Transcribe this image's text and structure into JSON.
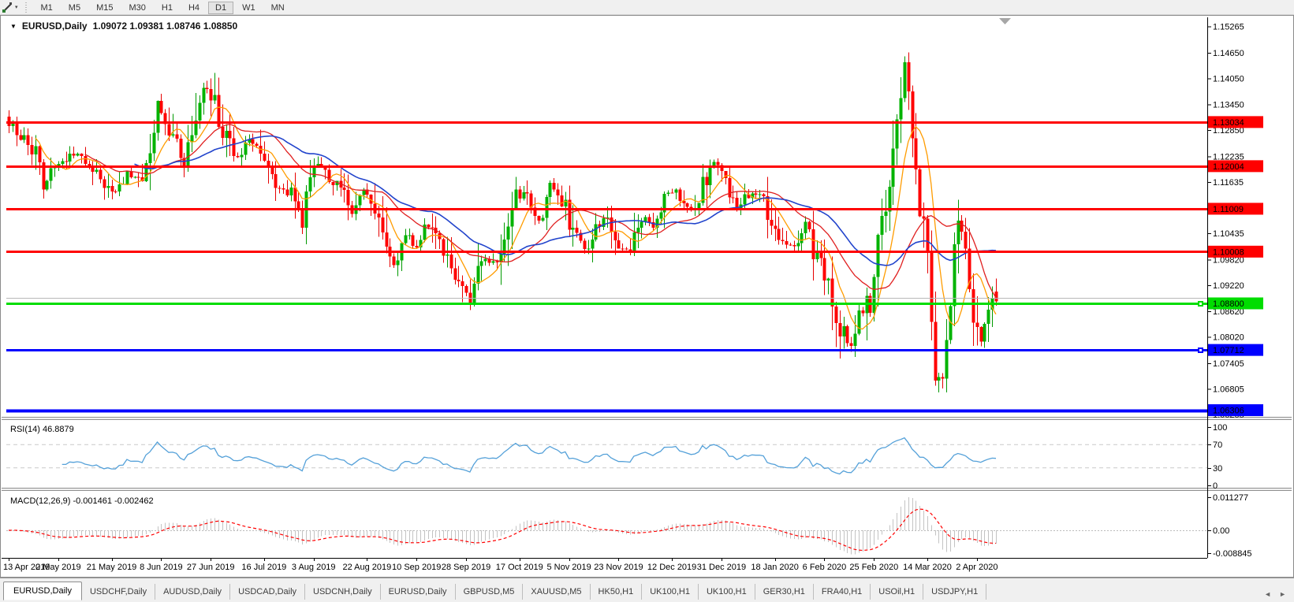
{
  "toolbar": {
    "timeframes": [
      "M1",
      "M5",
      "M15",
      "M30",
      "H1",
      "H4",
      "D1",
      "W1",
      "MN"
    ],
    "active_timeframe": "D1"
  },
  "glyphs": {
    "dropdown_triangle": "▼",
    "toolbar_caret": "▾",
    "tab_prev": "◄",
    "tab_next": "►"
  },
  "chart_header": {
    "symbol_label": "EURUSD,Daily",
    "ohlc_text": "1.09072 1.09381 1.08746 1.08850"
  },
  "indicators": {
    "rsi_label": "RSI(14) 46.8879",
    "macd_label": "MACD(12,26,9) -0.001461 -0.002462"
  },
  "tabs": {
    "items": [
      "EURUSD,Daily",
      "USDCHF,Daily",
      "AUDUSD,Daily",
      "USDCAD,Daily",
      "USDCNH,Daily",
      "EURUSD,Daily",
      "GBPUSD,M5",
      "XAUUSD,M5",
      "HK50,H1",
      "UK100,H1",
      "UK100,H1",
      "GER30,H1",
      "FRA40,H1",
      "USOil,H1",
      "USDJPY,H1"
    ],
    "active_index": 0
  },
  "chart_data": {
    "type": "candlestick",
    "symbol": "EURUSD",
    "timeframe": "Daily",
    "current_ohlc": {
      "open": 1.09072,
      "high": 1.09381,
      "low": 1.08746,
      "close": 1.0885
    },
    "grid": false,
    "ylim": [
      1.0615,
      1.1541
    ],
    "price_axis_ticks": [
      "1.15265",
      "1.14650",
      "1.14050",
      "1.13450",
      "1.12850",
      "1.12235",
      "1.11635",
      "1.10435",
      "1.09820",
      "1.09220",
      "1.08620",
      "1.08020",
      "1.07405",
      "1.06805",
      "1.06205"
    ],
    "date_labels": [
      "13 Apr 2019",
      "2 May 2019",
      "21 May 2019",
      "8 Jun 2019",
      "27 Jun 2019",
      "16 Jul 2019",
      "3 Aug 2019",
      "22 Aug 2019",
      "10 Sep 2019",
      "28 Sep 2019",
      "17 Oct 2019",
      "5 Nov 2019",
      "23 Nov 2019",
      "12 Dec 2019",
      "31 Dec 2019",
      "18 Jan 2020",
      "6 Feb 2020",
      "25 Feb 2020",
      "14 Mar 2020",
      "2 Apr 2020"
    ],
    "levels": [
      {
        "price": 1.13034,
        "label": "1.13034",
        "color": "#ff0000",
        "width": 3,
        "badge": true,
        "badge_text": "#ffffff",
        "handle": false
      },
      {
        "price": 1.12004,
        "label": "1.12004",
        "color": "#ff0000",
        "width": 3,
        "badge": true,
        "badge_text": "#ffffff",
        "handle": false
      },
      {
        "price": 1.11009,
        "label": "1.11009",
        "color": "#ff0000",
        "width": 3,
        "badge": true,
        "badge_text": "#ffffff",
        "handle": false
      },
      {
        "price": 1.10008,
        "label": "1.10008",
        "color": "#ff0000",
        "width": 3,
        "badge": true,
        "badge_text": "#ffffff",
        "handle": false
      },
      {
        "price": 1.0893,
        "label": "",
        "color": "#b8b8b8",
        "width": 1,
        "badge": false,
        "badge_text": "#000000",
        "handle": false
      },
      {
        "price": 1.088,
        "label": "1.08800",
        "color": "#00dd00",
        "width": 3,
        "badge": true,
        "badge_text": "#000000",
        "handle": true
      },
      {
        "price": 1.07712,
        "label": "1.07712",
        "color": "#0000ff",
        "width": 3,
        "badge": true,
        "badge_text": "#ffffff",
        "handle": true
      },
      {
        "price": 1.06306,
        "label": "1.06306",
        "color": "#0000ff",
        "width": 4,
        "badge": true,
        "badge_text": "#ffffff",
        "handle": false
      }
    ],
    "candle_count": 260,
    "price_path_anchors": [
      [
        0,
        1.1304
      ],
      [
        4,
        1.1262
      ],
      [
        7,
        1.123
      ],
      [
        9,
        1.1152
      ],
      [
        11,
        1.119
      ],
      [
        14,
        1.121
      ],
      [
        18,
        1.1232
      ],
      [
        22,
        1.119
      ],
      [
        25,
        1.1162
      ],
      [
        28,
        1.1135
      ],
      [
        31,
        1.118
      ],
      [
        34,
        1.1168
      ],
      [
        37,
        1.1221
      ],
      [
        39,
        1.133
      ],
      [
        43,
        1.1282
      ],
      [
        46,
        1.1208
      ],
      [
        48,
        1.13
      ],
      [
        51,
        1.138
      ],
      [
        53,
        1.1368
      ],
      [
        56,
        1.129
      ],
      [
        60,
        1.122
      ],
      [
        63,
        1.1268
      ],
      [
        66,
        1.123
      ],
      [
        70,
        1.1155
      ],
      [
        74,
        1.114
      ],
      [
        77,
        1.107
      ],
      [
        79,
        1.116
      ],
      [
        81,
        1.1205
      ],
      [
        84,
        1.117
      ],
      [
        87,
        1.115
      ],
      [
        90,
        1.1085
      ],
      [
        93,
        1.115
      ],
      [
        96,
        1.1095
      ],
      [
        99,
        1.1035
      ],
      [
        101,
        1.0975
      ],
      [
        104,
        1.104
      ],
      [
        107,
        1.1
      ],
      [
        109,
        1.1072
      ],
      [
        112,
        1.1035
      ],
      [
        115,
        1.0985
      ],
      [
        118,
        1.093
      ],
      [
        121,
        1.089
      ],
      [
        124,
        1.0985
      ],
      [
        127,
        1.0965
      ],
      [
        130,
        1.1035
      ],
      [
        133,
        1.1128
      ],
      [
        136,
        1.1135
      ],
      [
        139,
        1.1078
      ],
      [
        142,
        1.1152
      ],
      [
        145,
        1.1125
      ],
      [
        148,
        1.1048
      ],
      [
        151,
        1.1008
      ],
      [
        154,
        1.1052
      ],
      [
        157,
        1.1078
      ],
      [
        160,
        1.1012
      ],
      [
        163,
        1.1005
      ],
      [
        166,
        1.1082
      ],
      [
        169,
        1.1058
      ],
      [
        172,
        1.1132
      ],
      [
        175,
        1.1148
      ],
      [
        177,
        1.111
      ],
      [
        180,
        1.1086
      ],
      [
        183,
        1.1178
      ],
      [
        185,
        1.1215
      ],
      [
        188,
        1.1158
      ],
      [
        191,
        1.11
      ],
      [
        194,
        1.1135
      ],
      [
        197,
        1.1138
      ],
      [
        200,
        1.1082
      ],
      [
        203,
        1.102
      ],
      [
        206,
        1.101
      ],
      [
        209,
        1.1062
      ],
      [
        212,
        1.098
      ],
      [
        215,
        1.0915
      ],
      [
        218,
        1.0828
      ],
      [
        221,
        1.0782
      ],
      [
        223,
        1.085
      ],
      [
        226,
        1.0882
      ],
      [
        228,
        1.1028
      ],
      [
        231,
        1.1138
      ],
      [
        233,
        1.1288
      ],
      [
        235,
        1.1452
      ],
      [
        237,
        1.1268
      ],
      [
        239,
        1.1102
      ],
      [
        241,
        1.0992
      ],
      [
        243,
        1.069
      ],
      [
        245,
        1.0728
      ],
      [
        247,
        1.0888
      ],
      [
        249,
        1.1098
      ],
      [
        251,
        1.1028
      ],
      [
        253,
        1.0855
      ],
      [
        255,
        1.079
      ],
      [
        257,
        1.0862
      ],
      [
        259,
        1.0885
      ]
    ],
    "moving_averages": [
      {
        "name": "fast",
        "period": 8,
        "color": "#ff9c00"
      },
      {
        "name": "medium",
        "period": 21,
        "color": "#e02020"
      },
      {
        "name": "slow",
        "period": 34,
        "color": "#2244cc"
      }
    ],
    "rsi": {
      "period": 14,
      "current": 46.8879,
      "levels": [
        70,
        30
      ],
      "scale_labels": [
        "100",
        "70",
        "30",
        "0"
      ],
      "scale_values": [
        100,
        70,
        30,
        0
      ],
      "color": "#55a1d9",
      "level_line_color": "#c9c9c9"
    },
    "macd": {
      "fast": 12,
      "slow": 26,
      "signal": 9,
      "macd_value": -0.001461,
      "signal_value": -0.002462,
      "scale_labels": [
        "0.011277",
        "0.00",
        "-0.008845"
      ],
      "hist_color": "#c3c3c3",
      "signal_color": "#ff0000"
    },
    "colors": {
      "bull": "#00b300",
      "bull_wick": "#009900",
      "bear": "#ff0000",
      "bear_wick": "#e60000",
      "background": "#ffffff",
      "axis_text": "#000000",
      "shift_marker": "#a6a6a6"
    }
  }
}
